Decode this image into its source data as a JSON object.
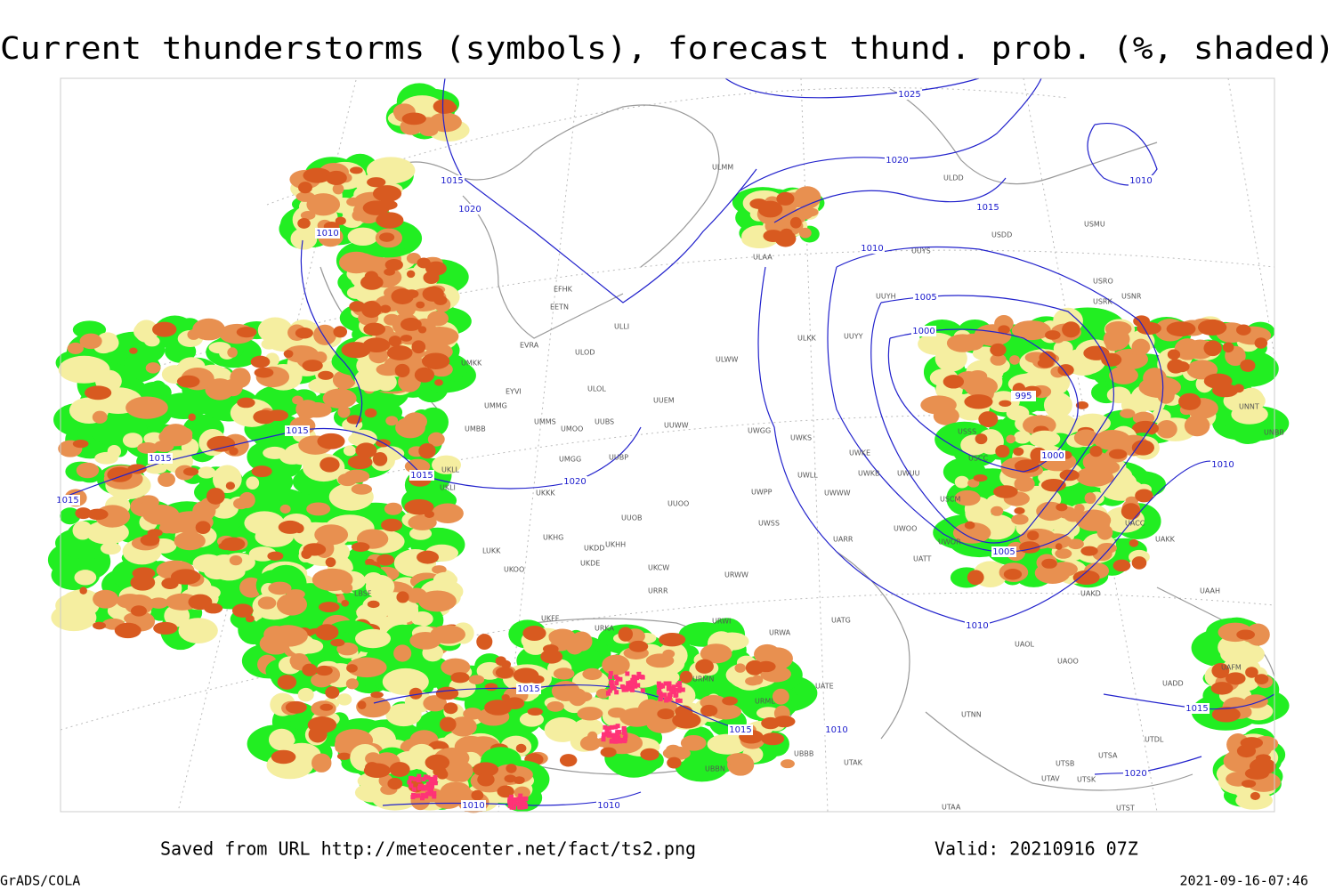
{
  "title": "Current thunderstorms (symbols), forecast thund. prob. (%, shaded)",
  "footer": {
    "saved": "Saved from URL http://meteocenter.net/fact/ts2.png",
    "valid": "Valid: 20210916 07Z",
    "credit": "GrADS/COLA",
    "timestamp": "2021-09-16-07:46"
  },
  "isobar_labels": [
    "1025",
    "1020",
    "1015",
    "1020",
    "1010",
    "1015",
    "1010",
    "1005",
    "1000",
    "995",
    "1000",
    "1005",
    "1010",
    "1010",
    "1010",
    "1015",
    "1015",
    "1015",
    "1015",
    "1020",
    "1015",
    "1015",
    "1010",
    "1010",
    "1010",
    "1015",
    "1020"
  ],
  "stations": [
    "EFHK",
    "EETN",
    "ULLI",
    "EVRA",
    "ULOD",
    "UMKK",
    "ULOL",
    "EYVI",
    "UMMG",
    "UUEM",
    "UMMS",
    "UMOO",
    "UUBS",
    "UUWW",
    "UMBB",
    "UMGG",
    "UUBP",
    "UKLL",
    "UKLI",
    "UKKK",
    "UUOO",
    "UUOB",
    "UKHH",
    "UKDD",
    "UKHG",
    "LUKK",
    "UKOO",
    "UKDE",
    "UKCW",
    "URRR",
    "UKFF",
    "URWI",
    "URKA",
    "ULMM",
    "ULDD",
    "USDD",
    "USMU",
    "ULAA",
    "UUYS",
    "USRO",
    "USRK",
    "USNR",
    "UUYH",
    "UUYY",
    "ULKK",
    "ULWW",
    "UWGG",
    "UWKS",
    "UWKE",
    "UWKB",
    "UWUU",
    "UWLL",
    "UWWW",
    "UWPP",
    "UWSS",
    "UWOO",
    "UARR",
    "UWOR",
    "UATT",
    "URWW",
    "USSS",
    "USCC",
    "USCM",
    "UACC",
    "UAKK",
    "UAKD",
    "UAAH",
    "UATG",
    "URWA",
    "UATE",
    "URMN",
    "URML",
    "UAOL",
    "UAOO",
    "UADD",
    "UAFM",
    "UTNN",
    "UTDL",
    "UTSA",
    "UTSB",
    "UTAV",
    "UTSK",
    "UTAA",
    "UTST",
    "UTAK",
    "UBBB",
    "UBBN",
    "LBSF",
    "UNNT",
    "UNBB"
  ]
}
